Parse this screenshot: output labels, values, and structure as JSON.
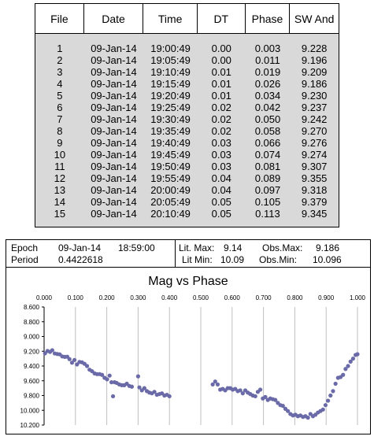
{
  "table": {
    "headers": [
      "File",
      "Date",
      "Time",
      "DT",
      "Phase",
      "SW And"
    ],
    "rows": [
      [
        "1",
        "09-Jan-14",
        "19:00:49",
        "0.00",
        "0.003",
        "9.228"
      ],
      [
        "2",
        "09-Jan-14",
        "19:05:49",
        "0.00",
        "0.011",
        "9.196"
      ],
      [
        "3",
        "09-Jan-14",
        "19:10:49",
        "0.01",
        "0.019",
        "9.209"
      ],
      [
        "4",
        "09-Jan-14",
        "19:15:49",
        "0.01",
        "0.026",
        "9.186"
      ],
      [
        "5",
        "09-Jan-14",
        "19:20:49",
        "0.01",
        "0.034",
        "9.230"
      ],
      [
        "6",
        "09-Jan-14",
        "19:25:49",
        "0.02",
        "0.042",
        "9.237"
      ],
      [
        "7",
        "09-Jan-14",
        "19:30:49",
        "0.02",
        "0.050",
        "9.242"
      ],
      [
        "8",
        "09-Jan-14",
        "19:35:49",
        "0.02",
        "0.058",
        "9.270"
      ],
      [
        "9",
        "09-Jan-14",
        "19:40:49",
        "0.03",
        "0.066",
        "9.276"
      ],
      [
        "10",
        "09-Jan-14",
        "19:45:49",
        "0.03",
        "0.074",
        "9.274"
      ],
      [
        "11",
        "09-Jan-14",
        "19:50:49",
        "0.03",
        "0.081",
        "9.307"
      ],
      [
        "12",
        "09-Jan-14",
        "19:55:49",
        "0.04",
        "0.089",
        "9.355"
      ],
      [
        "13",
        "09-Jan-14",
        "20:00:49",
        "0.04",
        "0.097",
        "9.318"
      ],
      [
        "14",
        "09-Jan-14",
        "20:05:49",
        "0.05",
        "0.105",
        "9.379"
      ],
      [
        "15",
        "09-Jan-14",
        "20:10:49",
        "0.05",
        "0.113",
        "9.345"
      ]
    ]
  },
  "info": {
    "epoch_label": "Epoch",
    "epoch_date": "09-Jan-14",
    "epoch_time": "18:59:00",
    "period_label": "Period",
    "period_value": "0.4422618",
    "lit_max_label": "Lit. Max:",
    "lit_max_value": "9.14",
    "lit_min_label": "Lit Min:",
    "lit_min_value": "10.09",
    "obs_max_label": "Obs.Max:",
    "obs_max_value": "9.186",
    "obs_min_label": "Obs.Min:",
    "obs_min_value": "10.096"
  },
  "colors": {
    "marker": "#6a6aa8",
    "grid": "#bfbfbf",
    "table_body": "#d9d9d9"
  },
  "chart_data": {
    "type": "scatter",
    "title": "Mag vs Phase",
    "xlabel": "",
    "ylabel": "",
    "xlim": [
      0,
      1
    ],
    "ylim": [
      8.6,
      10.2
    ],
    "y_inverted": true,
    "x_axis_position": "top",
    "grid": "vertical",
    "x_ticks": [
      "0.000",
      "0.100",
      "0.200",
      "0.300",
      "0.400",
      "0.500",
      "0.600",
      "0.700",
      "0.800",
      "0.900",
      "1.000"
    ],
    "y_ticks": [
      "8.600",
      "8.800",
      "9.000",
      "9.200",
      "9.400",
      "9.600",
      "9.800",
      "10.000",
      "10.200"
    ],
    "series": [
      {
        "points": [
          [
            0.003,
            9.228
          ],
          [
            0.011,
            9.196
          ],
          [
            0.019,
            9.209
          ],
          [
            0.026,
            9.186
          ],
          [
            0.034,
            9.23
          ],
          [
            0.042,
            9.237
          ],
          [
            0.05,
            9.242
          ],
          [
            0.058,
            9.27
          ],
          [
            0.066,
            9.276
          ],
          [
            0.074,
            9.274
          ],
          [
            0.081,
            9.307
          ],
          [
            0.089,
            9.355
          ],
          [
            0.097,
            9.318
          ],
          [
            0.105,
            9.379
          ],
          [
            0.113,
            9.345
          ],
          [
            0.121,
            9.35
          ],
          [
            0.129,
            9.37
          ],
          [
            0.137,
            9.4
          ],
          [
            0.145,
            9.45
          ],
          [
            0.153,
            9.47
          ],
          [
            0.161,
            9.5
          ],
          [
            0.169,
            9.51
          ],
          [
            0.177,
            9.51
          ],
          [
            0.185,
            9.52
          ],
          [
            0.193,
            9.56
          ],
          [
            0.201,
            9.58
          ],
          [
            0.209,
            9.53
          ],
          [
            0.215,
            9.62
          ],
          [
            0.22,
            9.81
          ],
          [
            0.225,
            9.62
          ],
          [
            0.232,
            9.63
          ],
          [
            0.24,
            9.65
          ],
          [
            0.248,
            9.66
          ],
          [
            0.256,
            9.66
          ],
          [
            0.264,
            9.64
          ],
          [
            0.272,
            9.67
          ],
          [
            0.28,
            9.68
          ],
          [
            0.3,
            9.54
          ],
          [
            0.304,
            9.69
          ],
          [
            0.312,
            9.73
          ],
          [
            0.32,
            9.7
          ],
          [
            0.328,
            9.74
          ],
          [
            0.336,
            9.76
          ],
          [
            0.344,
            9.77
          ],
          [
            0.352,
            9.75
          ],
          [
            0.36,
            9.79
          ],
          [
            0.368,
            9.78
          ],
          [
            0.376,
            9.77
          ],
          [
            0.384,
            9.8
          ],
          [
            0.392,
            9.79
          ],
          [
            0.4,
            9.81
          ],
          [
            0.538,
            9.65
          ],
          [
            0.546,
            9.61
          ],
          [
            0.554,
            9.65
          ],
          [
            0.562,
            9.72
          ],
          [
            0.57,
            9.71
          ],
          [
            0.578,
            9.73
          ],
          [
            0.586,
            9.7
          ],
          [
            0.594,
            9.7
          ],
          [
            0.602,
            9.72
          ],
          [
            0.61,
            9.71
          ],
          [
            0.618,
            9.74
          ],
          [
            0.626,
            9.73
          ],
          [
            0.634,
            9.77
          ],
          [
            0.642,
            9.73
          ],
          [
            0.65,
            9.76
          ],
          [
            0.658,
            9.78
          ],
          [
            0.666,
            9.8
          ],
          [
            0.674,
            9.81
          ],
          [
            0.682,
            9.75
          ],
          [
            0.69,
            9.72
          ],
          [
            0.698,
            9.84
          ],
          [
            0.706,
            9.82
          ],
          [
            0.714,
            9.86
          ],
          [
            0.722,
            9.84
          ],
          [
            0.73,
            9.85
          ],
          [
            0.738,
            9.86
          ],
          [
            0.746,
            9.9
          ],
          [
            0.754,
            9.93
          ],
          [
            0.762,
            9.94
          ],
          [
            0.77,
            9.98
          ],
          [
            0.778,
            10.01
          ],
          [
            0.786,
            10.05
          ],
          [
            0.794,
            10.07
          ],
          [
            0.802,
            10.06
          ],
          [
            0.81,
            10.08
          ],
          [
            0.818,
            10.07
          ],
          [
            0.826,
            10.09
          ],
          [
            0.834,
            10.08
          ],
          [
            0.842,
            10.1
          ],
          [
            0.85,
            10.05
          ],
          [
            0.858,
            10.08
          ],
          [
            0.866,
            10.06
          ],
          [
            0.874,
            10.03
          ],
          [
            0.882,
            10.01
          ],
          [
            0.89,
            9.99
          ],
          [
            0.898,
            9.93
          ],
          [
            0.906,
            9.87
          ],
          [
            0.914,
            9.8
          ],
          [
            0.922,
            9.74
          ],
          [
            0.93,
            9.64
          ],
          [
            0.938,
            9.56
          ],
          [
            0.946,
            9.55
          ],
          [
            0.954,
            9.52
          ],
          [
            0.962,
            9.44
          ],
          [
            0.97,
            9.4
          ],
          [
            0.978,
            9.34
          ],
          [
            0.986,
            9.3
          ],
          [
            0.994,
            9.25
          ],
          [
            1.0,
            9.24
          ]
        ]
      }
    ]
  }
}
